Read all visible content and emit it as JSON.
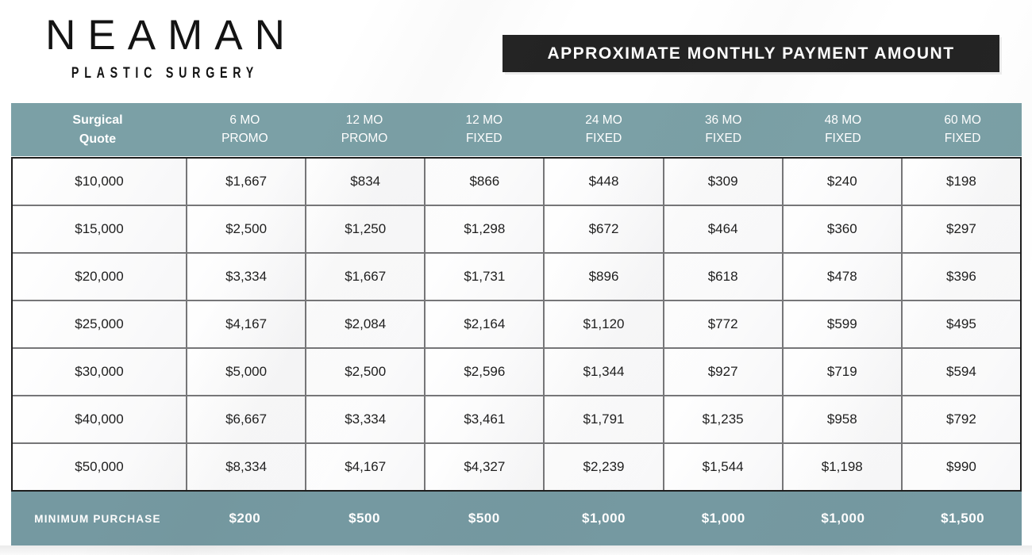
{
  "logo": {
    "name": "NEAMAN",
    "tagline": "PLASTIC SURGERY"
  },
  "banner": {
    "title": "APPROXIMATE MONTHLY PAYMENT AMOUNT",
    "background": "#232323"
  },
  "colors": {
    "header_teal": "#7BA0A6",
    "footer_teal": "#7599A1",
    "grid_border_gray": "#767678",
    "outer_border_black": "#1D1D1D",
    "cell_text": "#1E1E1E",
    "header_text": "#FFFFFF"
  },
  "table": {
    "headers": [
      {
        "l1": "Surgical",
        "l2": "Quote"
      },
      {
        "l1": "6 MO",
        "l2": "PROMO"
      },
      {
        "l1": "12 MO",
        "l2": "PROMO"
      },
      {
        "l1": "12 MO",
        "l2": "FIXED"
      },
      {
        "l1": "24 MO",
        "l2": "FIXED"
      },
      {
        "l1": "36 MO",
        "l2": "FIXED"
      },
      {
        "l1": "48 MO",
        "l2": "FIXED"
      },
      {
        "l1": "60 MO",
        "l2": "FIXED"
      }
    ],
    "rows": [
      [
        "$10,000",
        "$1,667",
        "$834",
        "$866",
        "$448",
        "$309",
        "$240",
        "$198"
      ],
      [
        "$15,000",
        "$2,500",
        "$1,250",
        "$1,298",
        "$672",
        "$464",
        "$360",
        "$297"
      ],
      [
        "$20,000",
        "$3,334",
        "$1,667",
        "$1,731",
        "$896",
        "$618",
        "$478",
        "$396"
      ],
      [
        "$25,000",
        "$4,167",
        "$2,084",
        "$2,164",
        "$1,120",
        "$772",
        "$599",
        "$495"
      ],
      [
        "$30,000",
        "$5,000",
        "$2,500",
        "$2,596",
        "$1,344",
        "$927",
        "$719",
        "$594"
      ],
      [
        "$40,000",
        "$6,667",
        "$3,334",
        "$3,461",
        "$1,791",
        "$1,235",
        "$958",
        "$792"
      ],
      [
        "$50,000",
        "$8,334",
        "$4,167",
        "$4,327",
        "$2,239",
        "$1,544",
        "$1,198",
        "$990"
      ]
    ],
    "footer": {
      "label": "MINIMUM PURCHASE",
      "values": [
        "$200",
        "$500",
        "$500",
        "$1,000",
        "$1,000",
        "$1,000",
        "$1,500"
      ]
    }
  }
}
